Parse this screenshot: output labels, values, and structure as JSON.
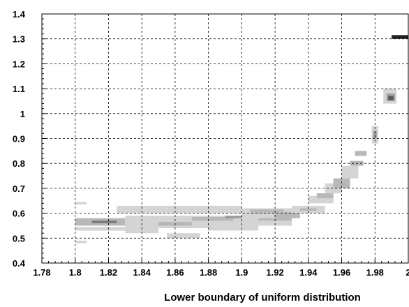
{
  "chart_data": {
    "type": "heatmap",
    "xlabel": "Lower boundary of uniform distribution",
    "ylabel": "",
    "xlim": [
      1.78,
      2.0
    ],
    "ylim": [
      0.4,
      1.4
    ],
    "x_ticks": [
      "1.78",
      "1.8",
      "1.82",
      "1.84",
      "1.86",
      "1.88",
      "1.9",
      "1.92",
      "1.94",
      "1.96",
      "1.98",
      "2"
    ],
    "y_ticks": [
      "0.4",
      "0.5",
      "0.6",
      "0.7",
      "0.8",
      "0.9",
      "1",
      "1.1",
      "1.2",
      "1.3",
      "1.4"
    ],
    "grid": true,
    "colormap": [
      "#f0f0f0",
      "#d4d4d4",
      "#b8b8b8",
      "#9a9a9a",
      "#7a7a7a",
      "#555555",
      "#222222"
    ],
    "cells": [
      {
        "x": 1.8,
        "y": 0.55,
        "x2": 1.83,
        "y2": 0.58,
        "level": 2
      },
      {
        "x": 1.8,
        "y": 0.53,
        "x2": 1.84,
        "y2": 0.545,
        "level": 1
      },
      {
        "x": 1.81,
        "y": 0.56,
        "x2": 1.825,
        "y2": 0.57,
        "level": 4
      },
      {
        "x": 1.8,
        "y": 0.635,
        "x2": 1.807,
        "y2": 0.645,
        "level": 1
      },
      {
        "x": 1.8,
        "y": 0.48,
        "x2": 1.807,
        "y2": 0.49,
        "level": 1
      },
      {
        "x": 1.825,
        "y": 0.6,
        "x2": 1.9,
        "y2": 0.63,
        "level": 1
      },
      {
        "x": 1.83,
        "y": 0.52,
        "x2": 1.85,
        "y2": 0.59,
        "level": 1
      },
      {
        "x": 1.84,
        "y": 0.54,
        "x2": 1.9,
        "y2": 0.59,
        "level": 1
      },
      {
        "x": 1.85,
        "y": 0.55,
        "x2": 1.87,
        "y2": 0.565,
        "level": 2
      },
      {
        "x": 1.855,
        "y": 0.5,
        "x2": 1.875,
        "y2": 0.52,
        "level": 1
      },
      {
        "x": 1.87,
        "y": 0.57,
        "x2": 1.895,
        "y2": 0.585,
        "level": 2
      },
      {
        "x": 1.88,
        "y": 0.53,
        "x2": 1.91,
        "y2": 0.55,
        "level": 1
      },
      {
        "x": 1.89,
        "y": 0.58,
        "x2": 1.9,
        "y2": 0.59,
        "level": 3
      },
      {
        "x": 1.9,
        "y": 0.575,
        "x2": 1.91,
        "y2": 0.585,
        "level": 3
      },
      {
        "x": 1.9,
        "y": 0.55,
        "x2": 1.93,
        "y2": 0.62,
        "level": 1
      },
      {
        "x": 1.905,
        "y": 0.6,
        "x2": 1.925,
        "y2": 0.615,
        "level": 2
      },
      {
        "x": 1.91,
        "y": 0.57,
        "x2": 1.93,
        "y2": 0.58,
        "level": 2
      },
      {
        "x": 1.92,
        "y": 0.58,
        "x2": 1.935,
        "y2": 0.605,
        "level": 2
      },
      {
        "x": 1.93,
        "y": 0.6,
        "x2": 1.95,
        "y2": 0.63,
        "level": 1
      },
      {
        "x": 1.935,
        "y": 0.61,
        "x2": 1.945,
        "y2": 0.62,
        "level": 2
      },
      {
        "x": 1.94,
        "y": 0.64,
        "x2": 1.955,
        "y2": 0.67,
        "level": 1
      },
      {
        "x": 1.945,
        "y": 0.66,
        "x2": 1.955,
        "y2": 0.68,
        "level": 2
      },
      {
        "x": 1.95,
        "y": 0.68,
        "x2": 1.96,
        "y2": 0.72,
        "level": 1
      },
      {
        "x": 1.955,
        "y": 0.7,
        "x2": 1.965,
        "y2": 0.74,
        "level": 2
      },
      {
        "x": 1.96,
        "y": 0.74,
        "x2": 1.97,
        "y2": 0.79,
        "level": 1
      },
      {
        "x": 1.965,
        "y": 0.79,
        "x2": 1.973,
        "y2": 0.81,
        "level": 2
      },
      {
        "x": 1.968,
        "y": 0.83,
        "x2": 1.975,
        "y2": 0.85,
        "level": 2
      },
      {
        "x": 1.978,
        "y": 0.88,
        "x2": 1.982,
        "y2": 0.95,
        "level": 1
      },
      {
        "x": 1.979,
        "y": 0.9,
        "x2": 1.981,
        "y2": 0.93,
        "level": 3
      },
      {
        "x": 1.985,
        "y": 1.04,
        "x2": 1.993,
        "y2": 1.1,
        "level": 1
      },
      {
        "x": 1.987,
        "y": 1.05,
        "x2": 1.992,
        "y2": 1.08,
        "level": 3
      },
      {
        "x": 1.988,
        "y": 1.055,
        "x2": 1.991,
        "y2": 1.07,
        "level": 5
      },
      {
        "x": 1.99,
        "y": 1.3,
        "x2": 2.0,
        "y2": 1.315,
        "level": 6
      }
    ]
  }
}
